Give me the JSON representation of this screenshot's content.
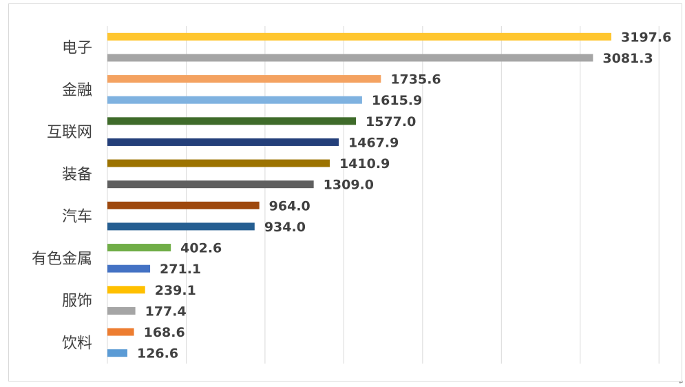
{
  "chart_data": {
    "type": "bar",
    "orientation": "horizontal",
    "title": "",
    "xlabel": "",
    "ylabel": "",
    "xlim": [
      0,
      3500
    ],
    "grid": true,
    "legend": "none",
    "categories": [
      "电子",
      "金融",
      "互联网",
      "装备",
      "汽车",
      "有色金属",
      "服饰",
      "饮料"
    ],
    "bars": [
      {
        "category_index": 0,
        "value": 3197.6,
        "label": "3197.6",
        "color": "#FFC62F"
      },
      {
        "category_index": 0,
        "value": 3081.3,
        "label": "3081.3",
        "color": "#A5A5A5"
      },
      {
        "category_index": 1,
        "value": 1735.6,
        "label": "1735.6",
        "color": "#F4A261"
      },
      {
        "category_index": 1,
        "value": 1615.9,
        "label": "1615.9",
        "color": "#7FB2E0"
      },
      {
        "category_index": 2,
        "value": 1577.0,
        "label": "1577.0",
        "color": "#3F6B2A"
      },
      {
        "category_index": 2,
        "value": 1467.9,
        "label": "1467.9",
        "color": "#243F7A"
      },
      {
        "category_index": 3,
        "value": 1410.9,
        "label": "1410.9",
        "color": "#9C7300"
      },
      {
        "category_index": 3,
        "value": 1309.0,
        "label": "1309.0",
        "color": "#5F5F5F"
      },
      {
        "category_index": 4,
        "value": 964.0,
        "label": "964.0",
        "color": "#9E480E"
      },
      {
        "category_index": 4,
        "value": 934.0,
        "label": "934.0",
        "color": "#255E91"
      },
      {
        "category_index": 5,
        "value": 402.6,
        "label": "402.6",
        "color": "#70AD47"
      },
      {
        "category_index": 5,
        "value": 271.1,
        "label": "271.1",
        "color": "#4472C4"
      },
      {
        "category_index": 6,
        "value": 239.1,
        "label": "239.1",
        "color": "#FFC000"
      },
      {
        "category_index": 6,
        "value": 177.4,
        "label": "177.4",
        "color": "#A5A5A5"
      },
      {
        "category_index": 7,
        "value": 168.6,
        "label": "168.6",
        "color": "#ED7D31"
      },
      {
        "category_index": 7,
        "value": 126.6,
        "label": "126.6",
        "color": "#5B9BD5"
      }
    ]
  },
  "footer_mark": "↵"
}
